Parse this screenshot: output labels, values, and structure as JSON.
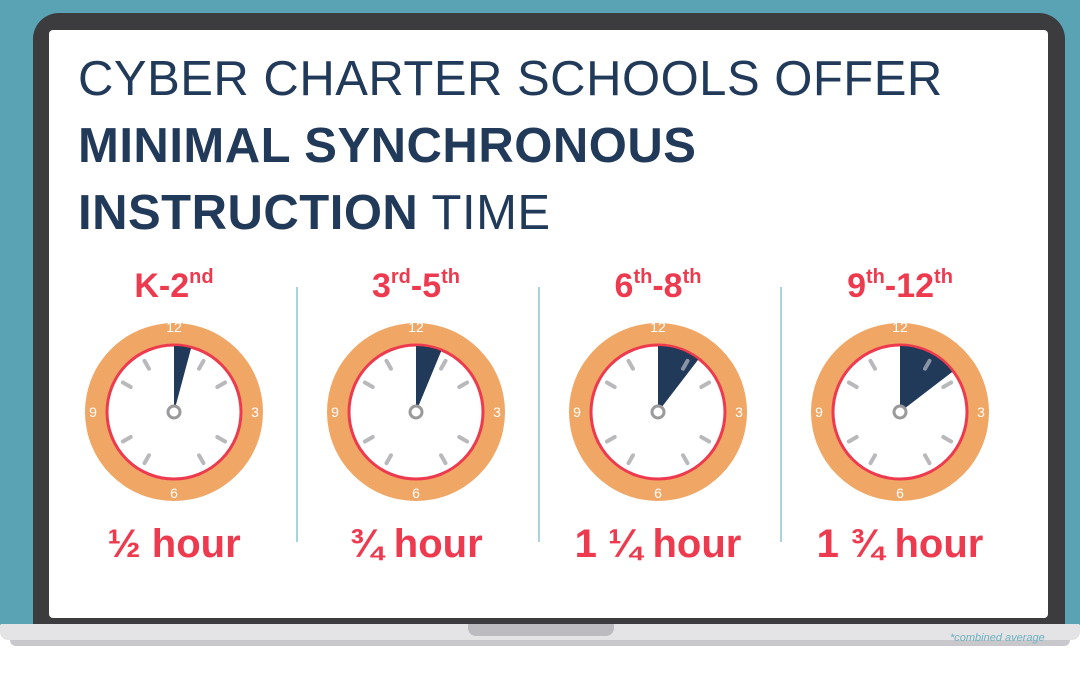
{
  "title": {
    "line1": "CYBER CHARTER SCHOOLS OFFER",
    "line2": "MINIMAL SYNCHRONOUS",
    "line3_bold": "INSTRUCTION",
    "line3_thin": " TIME"
  },
  "colors": {
    "background": "#5aa3b5",
    "laptop": "#3c3c3e",
    "title": "#223a5a",
    "accent_red": "#ee3a4e",
    "clock_ring": "#f0a664",
    "wedge": "#223a5a"
  },
  "clock_labels": {
    "twelve": "12",
    "three": "3",
    "six": "6",
    "nine": "9"
  },
  "grades": [
    {
      "base": "K-2",
      "sup1": "nd",
      "mid": "",
      "sup2": "",
      "duration": "½ hour",
      "hours": 0.5
    },
    {
      "base": "3",
      "sup1": "rd",
      "mid": "-5",
      "sup2": "th",
      "duration": "¾ hour",
      "hours": 0.75
    },
    {
      "base": "6",
      "sup1": "th",
      "mid": "-8",
      "sup2": "th",
      "duration": "1 ¼ hour",
      "hours": 1.25
    },
    {
      "base": "9",
      "sup1": "th",
      "mid": "-12",
      "sup2": "th",
      "duration": "1 ¾ hour",
      "hours": 1.75
    }
  ],
  "footnote": "*combined average"
}
